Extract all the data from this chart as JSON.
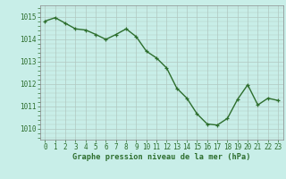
{
  "x": [
    0,
    1,
    2,
    3,
    4,
    5,
    6,
    7,
    8,
    9,
    10,
    11,
    12,
    13,
    14,
    15,
    16,
    17,
    18,
    19,
    20,
    21,
    22,
    23
  ],
  "y": [
    1014.8,
    1014.95,
    1014.7,
    1014.45,
    1014.4,
    1014.2,
    1013.98,
    1014.2,
    1014.45,
    1014.1,
    1013.45,
    1013.15,
    1012.7,
    1011.8,
    1011.35,
    1010.65,
    1010.2,
    1010.15,
    1010.45,
    1011.3,
    1011.95,
    1011.05,
    1011.35,
    1011.25
  ],
  "line_color": "#2d6e2d",
  "marker_color": "#2d6e2d",
  "bg_color": "#c8eee8",
  "grid_color": "#b0c8c0",
  "xlabel": "Graphe pression niveau de la mer (hPa)",
  "ylim": [
    1009.5,
    1015.5
  ],
  "xlim": [
    -0.5,
    23.5
  ],
  "yticks": [
    1010,
    1011,
    1012,
    1013,
    1014,
    1015
  ],
  "xticks": [
    0,
    1,
    2,
    3,
    4,
    5,
    6,
    7,
    8,
    9,
    10,
    11,
    12,
    13,
    14,
    15,
    16,
    17,
    18,
    19,
    20,
    21,
    22,
    23
  ],
  "tick_fontsize": 5.5,
  "xlabel_fontsize": 6.2,
  "line_width": 1.0,
  "marker_size": 3.5
}
